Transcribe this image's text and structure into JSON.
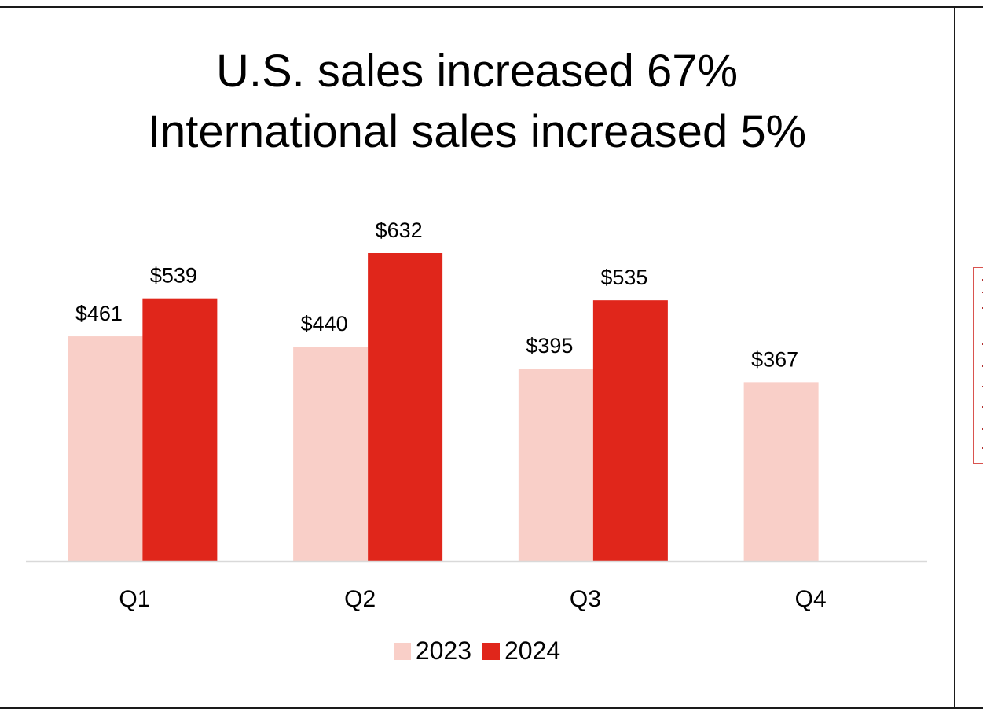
{
  "chart_data": {
    "type": "bar",
    "title_lines": [
      "U.S. sales increased 67%",
      "International sales increased 5%"
    ],
    "categories": [
      "Q1",
      "Q2",
      "Q3",
      "Q4"
    ],
    "series": [
      {
        "name": "2023",
        "values": [
          461,
          440,
          395,
          367
        ],
        "labels": [
          "$461",
          "$440",
          "$395",
          "$367"
        ],
        "color": "#f9cfc8"
      },
      {
        "name": "2024",
        "values": [
          539,
          632,
          535,
          null
        ],
        "labels": [
          "$539",
          "$632",
          "$535",
          null
        ],
        "color": "#e0261b"
      }
    ],
    "ylim": [
      0,
      632
    ],
    "grid": false,
    "legend": "bottom-center",
    "axis_color": "#d9d9d9"
  }
}
